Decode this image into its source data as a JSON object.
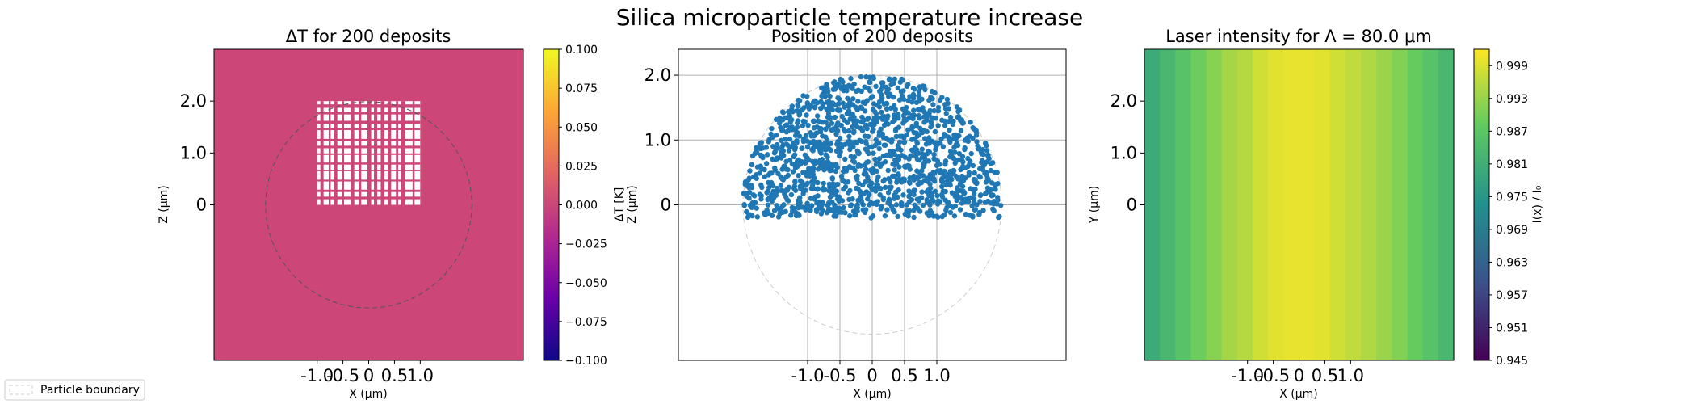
{
  "figure": {
    "suptitle": "Silica microparticle temperature increase",
    "legend_label": "Particle boundary"
  },
  "colors": {
    "heatmap_fill": "#CC4778",
    "scatter_point": "#1F77B4",
    "boundary_line": "#CCCCCC",
    "grid": "#B0B0B0",
    "plasma_stops": [
      "#0D0887",
      "#6A00A8",
      "#B12A90",
      "#E16462",
      "#FCA636",
      "#F0F921"
    ],
    "viridis_stops": [
      "#440154",
      "#3B528B",
      "#21918C",
      "#5EC962",
      "#FDE725"
    ]
  },
  "chart_data": [
    {
      "type": "heatmap",
      "title": "ΔT for 200 deposits",
      "xlabel": "X (μm)",
      "ylabel": "Z (μm)",
      "xlim": [
        -3,
        3
      ],
      "ylim": [
        -3,
        3
      ],
      "x_ticks": [
        -1.0,
        -0.5,
        0,
        0.5,
        1.0
      ],
      "x_tick_labels": [
        "-1.0",
        "-0.5",
        "0",
        "0.5",
        "1.0"
      ],
      "y_ticks": [
        0,
        1.0,
        2.0
      ],
      "y_tick_labels": [
        "0",
        "1.0",
        "2.0"
      ],
      "uniform_value": 0.0,
      "deposit_region": {
        "x": [
          -1.0,
          1.0
        ],
        "z": [
          0,
          2.0
        ]
      },
      "particle_radius": 2.0,
      "colorbar": {
        "label": "ΔT [K]",
        "colormap": "plasma",
        "range": [
          -0.1,
          0.1
        ],
        "ticks": [
          0.1,
          0.075,
          0.05,
          0.025,
          0.0,
          -0.025,
          -0.05,
          -0.075,
          -0.1
        ],
        "tick_labels": [
          "0.100",
          "0.075",
          "0.050",
          "0.025",
          "0.000",
          "−0.025",
          "−0.050",
          "−0.075",
          "−0.100"
        ]
      }
    },
    {
      "type": "scatter",
      "title": "Position of 200 deposits",
      "xlabel": "X (μm)",
      "ylabel": "Z (μm)",
      "xlim": [
        -3.0,
        3.0
      ],
      "ylim": [
        -2.4,
        2.4
      ],
      "x_ticks": [
        -1.0,
        -0.5,
        0,
        0.5,
        1.0
      ],
      "x_tick_labels": [
        "-1.0",
        "-0.5",
        "0",
        "0.5",
        "1.0"
      ],
      "y_ticks": [
        0,
        1.0,
        2.0
      ],
      "y_tick_labels": [
        "0",
        "1.0",
        "2.0"
      ],
      "grid": true,
      "particle_radius": 2.0,
      "point_region": {
        "z_min": -0.2,
        "z_max": 2.0,
        "radius": 2.0
      }
    },
    {
      "type": "heatmap",
      "title": "Laser intensity for Λ = 80.0 μm",
      "xlabel": "X (μm)",
      "ylabel": "Y (μm)",
      "xlim": [
        -3,
        3
      ],
      "ylim": [
        -3,
        3
      ],
      "x_ticks": [
        -1.0,
        -0.5,
        0,
        0.5,
        1.0
      ],
      "x_tick_labels": [
        "-1.0",
        "-0.5",
        "0",
        "0.5",
        "1.0"
      ],
      "y_ticks": [
        0,
        1.0,
        2.0
      ],
      "y_tick_labels": [
        "0",
        "1.0",
        "2.0"
      ],
      "columns": [
        0.98,
        0.983,
        0.986,
        0.989,
        0.9915,
        0.994,
        0.9955,
        0.998,
        0.9995,
        1.0,
        1.0,
        0.9995,
        0.998,
        0.9965,
        0.995,
        0.993,
        0.991,
        0.9885,
        0.986,
        0.983
      ],
      "colorbar": {
        "label": "I(x) / I₀",
        "colormap": "viridis",
        "range": [
          0.945,
          1.002
        ],
        "ticks": [
          0.999,
          0.993,
          0.987,
          0.981,
          0.975,
          0.969,
          0.963,
          0.957,
          0.951,
          0.945
        ],
        "tick_labels": [
          "0.999",
          "0.993",
          "0.987",
          "0.981",
          "0.975",
          "0.969",
          "0.963",
          "0.957",
          "0.951",
          "0.945"
        ]
      }
    }
  ]
}
